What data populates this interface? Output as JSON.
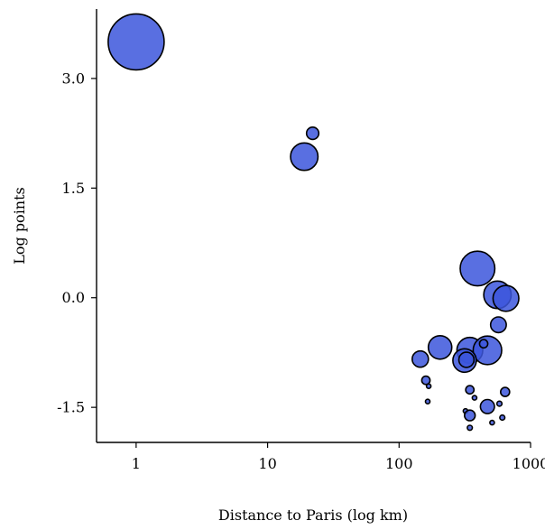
{
  "chart_data": {
    "type": "scatter",
    "title": "",
    "xlabel": "Distance to Paris (log km)",
    "ylabel": "Log points",
    "x_scale": "log",
    "xlim": [
      0.5,
      1000
    ],
    "ylim": [
      -1.98,
      3.95
    ],
    "x_ticks": [
      1,
      10,
      100,
      1000
    ],
    "x_tick_labels": [
      "1",
      "10",
      "100",
      "1000"
    ],
    "y_ticks": [
      -1.5,
      0.0,
      1.5,
      3.0
    ],
    "y_tick_labels": [
      "-1.5",
      "0.0",
      "1.5",
      "3.0"
    ],
    "grid": false,
    "legend": "none",
    "colors": {
      "bubble_fill": "#3c56dc",
      "bubble_edge": "#000000"
    },
    "points": [
      {
        "x": 1,
        "y": 3.5,
        "size": 1
      },
      {
        "x": 22,
        "y": 2.25,
        "size": 0.22
      },
      {
        "x": 19,
        "y": 1.93,
        "size": 0.49
      },
      {
        "x": 395,
        "y": 0.4,
        "size": 0.62
      },
      {
        "x": 560,
        "y": 0.04,
        "size": 0.49
      },
      {
        "x": 650,
        "y": -0.01,
        "size": 0.46
      },
      {
        "x": 570,
        "y": -0.37,
        "size": 0.28
      },
      {
        "x": 205,
        "y": -0.68,
        "size": 0.42
      },
      {
        "x": 345,
        "y": -0.72,
        "size": 0.46
      },
      {
        "x": 470,
        "y": -0.72,
        "size": 0.51
      },
      {
        "x": 440,
        "y": -0.63,
        "size": 0.15
      },
      {
        "x": 145,
        "y": -0.84,
        "size": 0.29
      },
      {
        "x": 315,
        "y": -0.86,
        "size": 0.42
      },
      {
        "x": 325,
        "y": -0.85,
        "size": 0.27
      },
      {
        "x": 160,
        "y": -1.13,
        "size": 0.15
      },
      {
        "x": 168,
        "y": -1.21,
        "size": 0.08
      },
      {
        "x": 345,
        "y": -1.26,
        "size": 0.15
      },
      {
        "x": 375,
        "y": -1.37,
        "size": 0.06
      },
      {
        "x": 640,
        "y": -1.29,
        "size": 0.16
      },
      {
        "x": 165,
        "y": -1.42,
        "size": 0.08
      },
      {
        "x": 320,
        "y": -1.55,
        "size": 0.06
      },
      {
        "x": 345,
        "y": -1.61,
        "size": 0.19
      },
      {
        "x": 470,
        "y": -1.49,
        "size": 0.25
      },
      {
        "x": 580,
        "y": -1.45,
        "size": 0.09
      },
      {
        "x": 610,
        "y": -1.64,
        "size": 0.09
      },
      {
        "x": 510,
        "y": -1.71,
        "size": 0.08
      },
      {
        "x": 345,
        "y": -1.78,
        "size": 0.09
      }
    ]
  }
}
